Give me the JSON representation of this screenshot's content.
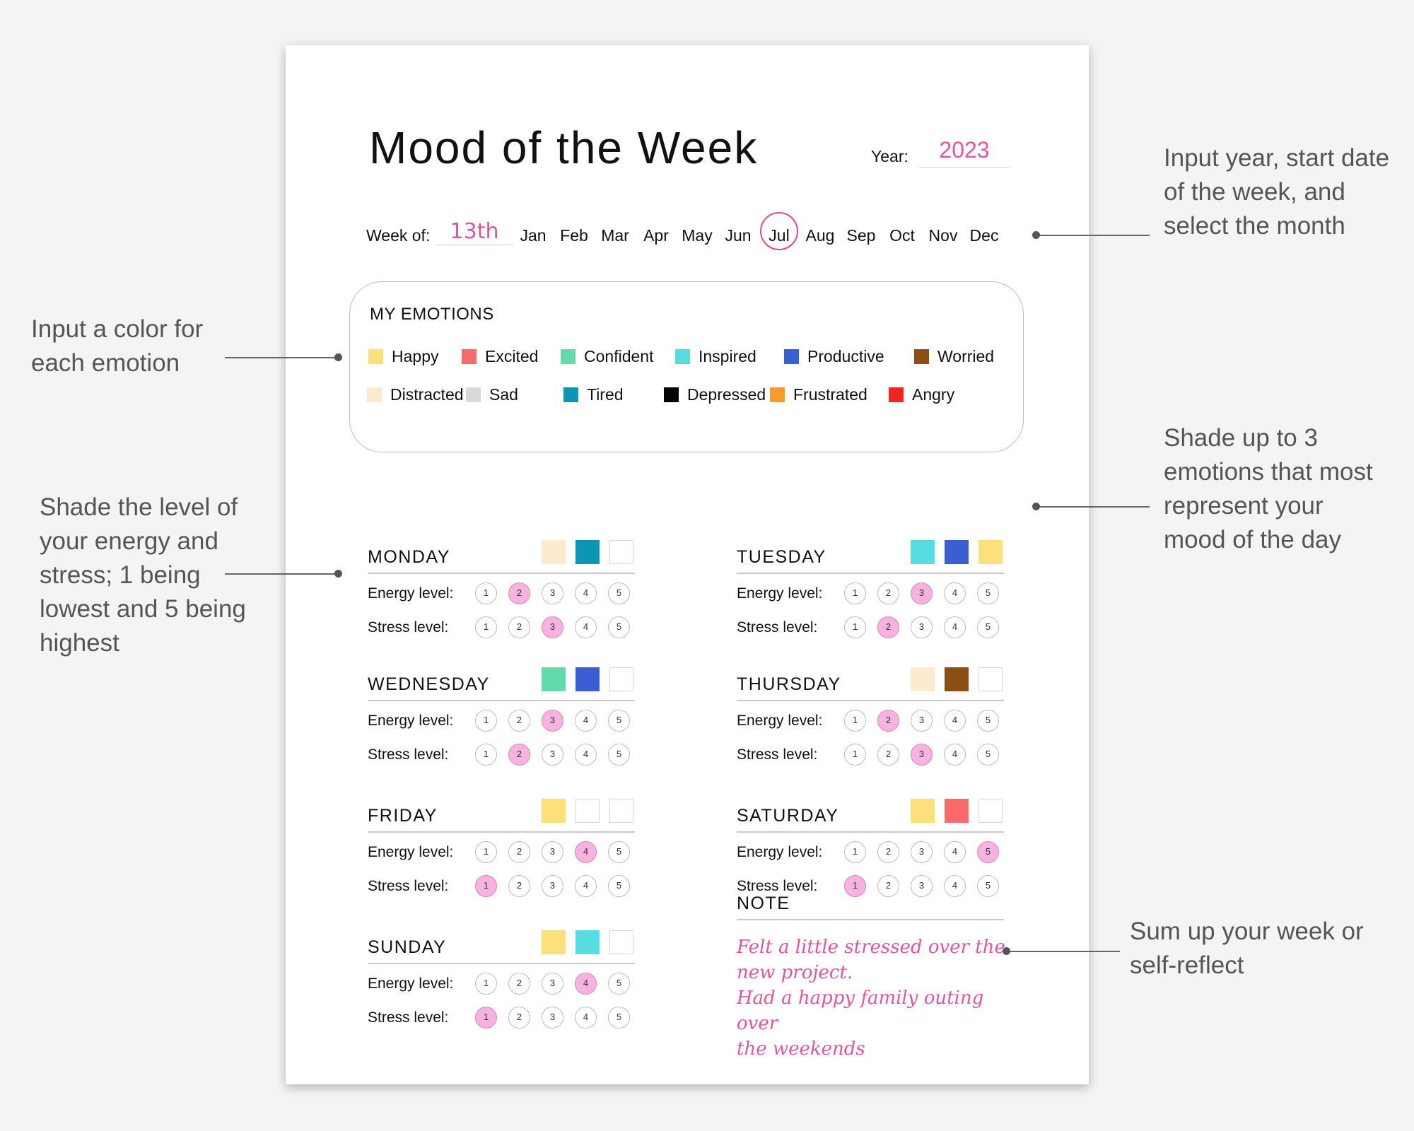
{
  "title": "Mood of the Week",
  "year": {
    "label": "Year:",
    "value": "2023"
  },
  "week_of": {
    "label": "Week of:",
    "value": "13th"
  },
  "months": [
    "Jan",
    "Feb",
    "Mar",
    "Apr",
    "May",
    "Jun",
    "Jul",
    "Aug",
    "Sep",
    "Oct",
    "Nov",
    "Dec"
  ],
  "selected_month": "Jul",
  "emotions_title": "MY EMOTIONS",
  "emotions": [
    {
      "name": "Happy",
      "color": "#fde07a"
    },
    {
      "name": "Excited",
      "color": "#fb6a6a"
    },
    {
      "name": "Confident",
      "color": "#63dba8"
    },
    {
      "name": "Inspired",
      "color": "#55dde2"
    },
    {
      "name": "Productive",
      "color": "#3b5fd3"
    },
    {
      "name": "Worried",
      "color": "#8b4f14"
    },
    {
      "name": "Distracted",
      "color": "#fdebd0"
    },
    {
      "name": "Sad",
      "color": "#d9d9d9"
    },
    {
      "name": "Tired",
      "color": "#0e95b3"
    },
    {
      "name": "Depressed",
      "color": "#050505"
    },
    {
      "name": "Frustrated",
      "color": "#fb9a2a"
    },
    {
      "name": "Angry",
      "color": "#f02424"
    }
  ],
  "energy_label": "Energy level:",
  "stress_label": "Stress level:",
  "scale": [
    "1",
    "2",
    "3",
    "4",
    "5"
  ],
  "days": [
    {
      "name": "MONDAY",
      "colors": [
        "#fdebd0",
        "#0e95b3",
        ""
      ],
      "energy": 2,
      "stress": 3
    },
    {
      "name": "TUESDAY",
      "colors": [
        "#55dde2",
        "#3b5fd3",
        "#fde07a"
      ],
      "energy": 3,
      "stress": 2
    },
    {
      "name": "WEDNESDAY",
      "colors": [
        "#63dba8",
        "#3b5fd3",
        ""
      ],
      "energy": 3,
      "stress": 2
    },
    {
      "name": "THURSDAY",
      "colors": [
        "#fdebd0",
        "#8b4f14",
        ""
      ],
      "energy": 2,
      "stress": 3
    },
    {
      "name": "FRIDAY",
      "colors": [
        "#fde07a",
        "",
        ""
      ],
      "energy": 4,
      "stress": 1
    },
    {
      "name": "SATURDAY",
      "colors": [
        "#fde07a",
        "#fb6a6a",
        ""
      ],
      "energy": 5,
      "stress": 1
    },
    {
      "name": "SUNDAY",
      "colors": [
        "#fde07a",
        "#55dde2",
        ""
      ],
      "energy": 4,
      "stress": 1
    }
  ],
  "note": {
    "title": "NOTE",
    "lines": [
      "Felt a little stressed over the",
      "new project.",
      "Had a happy family outing over",
      "the weekends"
    ]
  },
  "callouts": {
    "year": "Input year, start date of the week, and select the month",
    "emotion": "Input a color for each emotion",
    "energy": "Shade the level of your energy and stress; 1 being lowest and 5 being highest",
    "shade": "Shade up to 3 emotions that most represent your mood of the day",
    "note": "Sum up your week or self-reflect"
  }
}
